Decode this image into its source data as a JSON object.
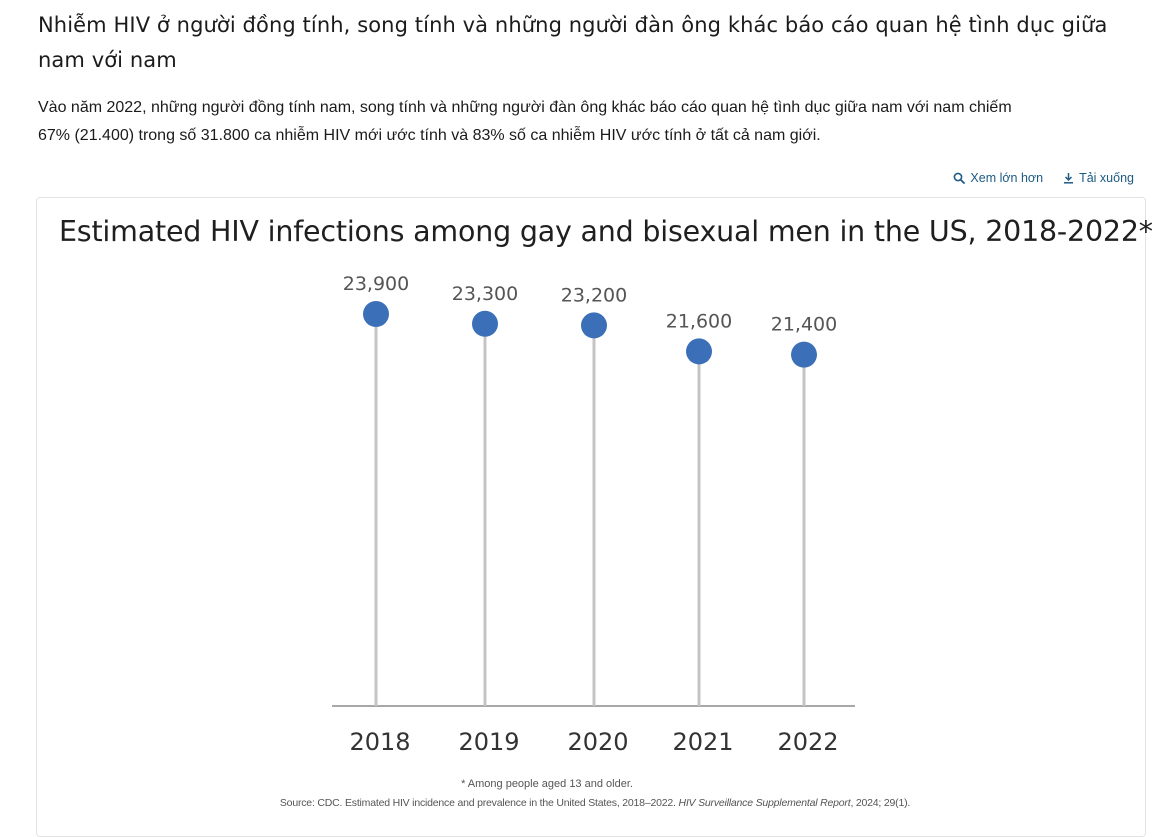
{
  "page": {
    "heading": "Nhiễm HIV ở người đồng tính, song tính và những người đàn ông khác báo cáo quan hệ tình dục giữa nam với nam",
    "summary_line1": "Vào năm 2022, những người đồng tính nam, song tính và những người đàn ông khác báo cáo quan hệ tình dục giữa nam với nam chiếm",
    "summary_line2": "67% (21.400) trong số 31.800 ca nhiễm HIV mới ước tính và 83% số ca nhiễm HIV ước tính ở tất cả nam giới."
  },
  "actions": {
    "enlarge_label": "Xem lớn hơn",
    "download_label": "Tải xuống",
    "enlarge_icon": "magnifier-icon",
    "download_icon": "download-icon",
    "color": "#1d5a84"
  },
  "chart_data": {
    "type": "lollipop",
    "title": "Estimated HIV infections among gay and bisexual men in the US, 2018-2022*",
    "categories": [
      "2018",
      "2019",
      "2020",
      "2021",
      "2022"
    ],
    "values": [
      23900,
      23300,
      23200,
      21600,
      21400
    ],
    "value_labels": [
      "23,900",
      "23,300",
      "23,200",
      "21,600",
      "21,400"
    ],
    "grid": false,
    "legend": "none",
    "marker_color": "#3b70b8",
    "stem_color": "#c4c4c4",
    "footnote": "* Among people aged 13 and older.",
    "source_prefix": "Source: CDC. Estimated HIV incidence and prevalence in the United States, 2018–2022. ",
    "source_journal": "HIV Surveillance Supplemental Report",
    "source_suffix": ", 2024; 29(1)."
  }
}
